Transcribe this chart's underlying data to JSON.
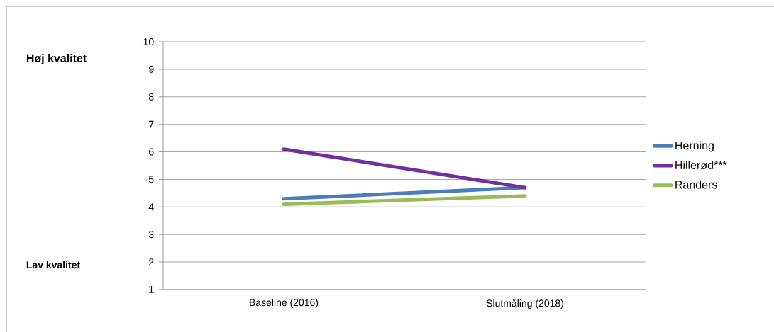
{
  "chart_data": {
    "type": "line",
    "categories": [
      "Baseline (2016)",
      "Slutmåling (2018)"
    ],
    "series": [
      {
        "name": "Herning",
        "color": "#4a7ebb",
        "values": [
          4.3,
          4.7
        ]
      },
      {
        "name": "Hillerød***",
        "color": "#7030a0",
        "values": [
          6.1,
          4.7
        ]
      },
      {
        "name": "Randers",
        "color": "#9bbb59",
        "values": [
          4.1,
          4.4
        ]
      }
    ],
    "ylim": [
      1,
      10
    ],
    "yticks": [
      1,
      2,
      3,
      4,
      5,
      6,
      7,
      8,
      9,
      10
    ],
    "grid": "y",
    "legend": "right",
    "marker": "none",
    "line_style": "solid",
    "annotations": [
      "Høj kvalitet",
      "Lav kvalitet"
    ]
  }
}
